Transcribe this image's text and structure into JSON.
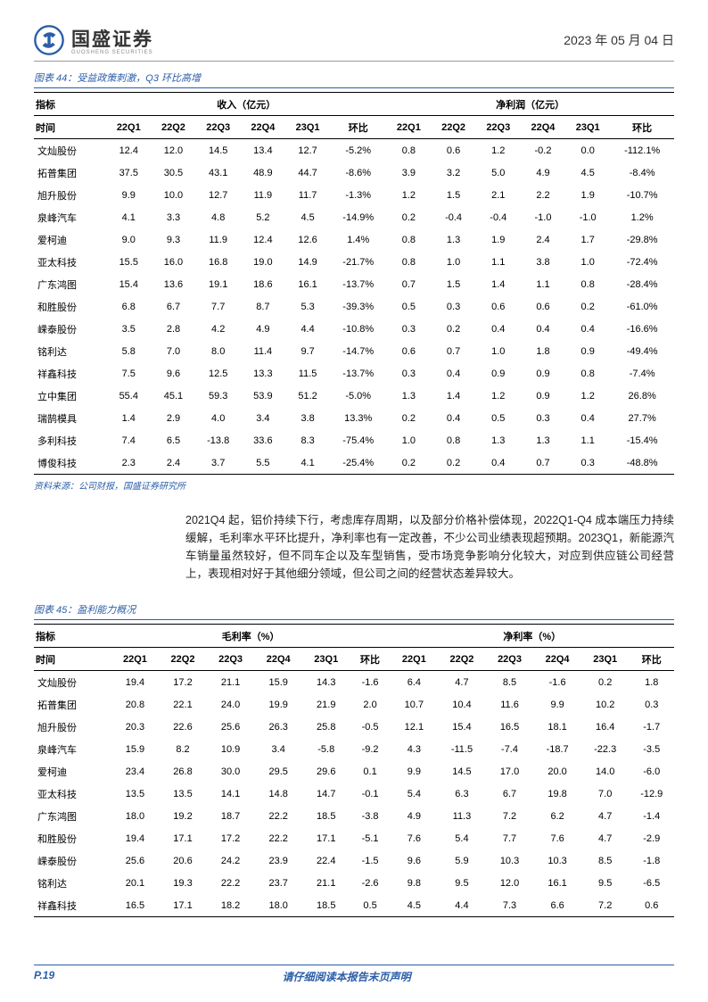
{
  "header": {
    "brand_cn": "国盛证券",
    "brand_en": "GUOSHENG SECURITIES",
    "date": "2023 年 05 月 04 日",
    "logo_color": "#2b5ea8"
  },
  "table44": {
    "title": "图表 44：受益政策刺激，Q3 环比高增",
    "group_headers": [
      "指标",
      "收入（亿元）",
      "净利润（亿元）"
    ],
    "sub_headers": [
      "时间",
      "22Q1",
      "22Q2",
      "22Q3",
      "22Q4",
      "23Q1",
      "环比",
      "22Q1",
      "22Q2",
      "22Q3",
      "22Q4",
      "23Q1",
      "环比"
    ],
    "rows": [
      [
        "文灿股份",
        "12.4",
        "12.0",
        "14.5",
        "13.4",
        "12.7",
        "-5.2%",
        "0.8",
        "0.6",
        "1.2",
        "-0.2",
        "0.0",
        "-112.1%"
      ],
      [
        "拓普集团",
        "37.5",
        "30.5",
        "43.1",
        "48.9",
        "44.7",
        "-8.6%",
        "3.9",
        "3.2",
        "5.0",
        "4.9",
        "4.5",
        "-8.4%"
      ],
      [
        "旭升股份",
        "9.9",
        "10.0",
        "12.7",
        "11.9",
        "11.7",
        "-1.3%",
        "1.2",
        "1.5",
        "2.1",
        "2.2",
        "1.9",
        "-10.7%"
      ],
      [
        "泉峰汽车",
        "4.1",
        "3.3",
        "4.8",
        "5.2",
        "4.5",
        "-14.9%",
        "0.2",
        "-0.4",
        "-0.4",
        "-1.0",
        "-1.0",
        "1.2%"
      ],
      [
        "爱柯迪",
        "9.0",
        "9.3",
        "11.9",
        "12.4",
        "12.6",
        "1.4%",
        "0.8",
        "1.3",
        "1.9",
        "2.4",
        "1.7",
        "-29.8%"
      ],
      [
        "亚太科技",
        "15.5",
        "16.0",
        "16.8",
        "19.0",
        "14.9",
        "-21.7%",
        "0.8",
        "1.0",
        "1.1",
        "3.8",
        "1.0",
        "-72.4%"
      ],
      [
        "广东鸿图",
        "15.4",
        "13.6",
        "19.1",
        "18.6",
        "16.1",
        "-13.7%",
        "0.7",
        "1.5",
        "1.4",
        "1.1",
        "0.8",
        "-28.4%"
      ],
      [
        "和胜股份",
        "6.8",
        "6.7",
        "7.7",
        "8.7",
        "5.3",
        "-39.3%",
        "0.5",
        "0.3",
        "0.6",
        "0.6",
        "0.2",
        "-61.0%"
      ],
      [
        "嵘泰股份",
        "3.5",
        "2.8",
        "4.2",
        "4.9",
        "4.4",
        "-10.8%",
        "0.3",
        "0.2",
        "0.4",
        "0.4",
        "0.4",
        "-16.6%"
      ],
      [
        "铭利达",
        "5.8",
        "7.0",
        "8.0",
        "11.4",
        "9.7",
        "-14.7%",
        "0.6",
        "0.7",
        "1.0",
        "1.8",
        "0.9",
        "-49.4%"
      ],
      [
        "祥鑫科技",
        "7.5",
        "9.6",
        "12.5",
        "13.3",
        "11.5",
        "-13.7%",
        "0.3",
        "0.4",
        "0.9",
        "0.9",
        "0.8",
        "-7.4%"
      ],
      [
        "立中集团",
        "55.4",
        "45.1",
        "59.3",
        "53.9",
        "51.2",
        "-5.0%",
        "1.3",
        "1.4",
        "1.2",
        "0.9",
        "1.2",
        "26.8%"
      ],
      [
        "瑞鹄模具",
        "1.4",
        "2.9",
        "4.0",
        "3.4",
        "3.8",
        "13.3%",
        "0.2",
        "0.4",
        "0.5",
        "0.3",
        "0.4",
        "27.7%"
      ],
      [
        "多利科技",
        "7.4",
        "6.5",
        "-13.8",
        "33.6",
        "8.3",
        "-75.4%",
        "1.0",
        "0.8",
        "1.3",
        "1.3",
        "1.1",
        "-15.4%"
      ],
      [
        "博俊科技",
        "2.3",
        "2.4",
        "3.7",
        "5.5",
        "4.1",
        "-25.4%",
        "0.2",
        "0.2",
        "0.4",
        "0.7",
        "0.3",
        "-48.8%"
      ]
    ],
    "source": "资料来源：公司财报，国盛证券研究所"
  },
  "paragraph_text": "2021Q4 起，铝价持续下行，考虑库存周期，以及部分价格补偿体现，2022Q1-Q4 成本端压力持续缓解，毛利率水平环比提升，净利率也有一定改善，不少公司业绩表现超预期。2023Q1，新能源汽车销量虽然较好，但不同车企以及车型销售，受市场竞争影响分化较大，对应到供应链公司经营上，表现相对好于其他细分领域，但公司之间的经营状态差异较大。",
  "table45": {
    "title": "图表 45：盈利能力概况",
    "group_headers": [
      "指标",
      "毛利率（%）",
      "净利率（%）"
    ],
    "sub_headers": [
      "时间",
      "22Q1",
      "22Q2",
      "22Q3",
      "22Q4",
      "23Q1",
      "环比",
      "22Q1",
      "22Q2",
      "22Q3",
      "22Q4",
      "23Q1",
      "环比"
    ],
    "rows": [
      [
        "文灿股份",
        "19.4",
        "17.2",
        "21.1",
        "15.9",
        "14.3",
        "-1.6",
        "6.4",
        "4.7",
        "8.5",
        "-1.6",
        "0.2",
        "1.8"
      ],
      [
        "拓普集团",
        "20.8",
        "22.1",
        "24.0",
        "19.9",
        "21.9",
        "2.0",
        "10.7",
        "10.4",
        "11.6",
        "9.9",
        "10.2",
        "0.3"
      ],
      [
        "旭升股份",
        "20.3",
        "22.6",
        "25.6",
        "26.3",
        "25.8",
        "-0.5",
        "12.1",
        "15.4",
        "16.5",
        "18.1",
        "16.4",
        "-1.7"
      ],
      [
        "泉峰汽车",
        "15.9",
        "8.2",
        "10.9",
        "3.4",
        "-5.8",
        "-9.2",
        "4.3",
        "-11.5",
        "-7.4",
        "-18.7",
        "-22.3",
        "-3.5"
      ],
      [
        "爱柯迪",
        "23.4",
        "26.8",
        "30.0",
        "29.5",
        "29.6",
        "0.1",
        "9.9",
        "14.5",
        "17.0",
        "20.0",
        "14.0",
        "-6.0"
      ],
      [
        "亚太科技",
        "13.5",
        "13.5",
        "14.1",
        "14.8",
        "14.7",
        "-0.1",
        "5.4",
        "6.3",
        "6.7",
        "19.8",
        "7.0",
        "-12.9"
      ],
      [
        "广东鸿图",
        "18.0",
        "19.2",
        "18.7",
        "22.2",
        "18.5",
        "-3.8",
        "4.9",
        "11.3",
        "7.2",
        "6.2",
        "4.7",
        "-1.4"
      ],
      [
        "和胜股份",
        "19.4",
        "17.1",
        "17.2",
        "22.2",
        "17.1",
        "-5.1",
        "7.6",
        "5.4",
        "7.7",
        "7.6",
        "4.7",
        "-2.9"
      ],
      [
        "嵘泰股份",
        "25.6",
        "20.6",
        "24.2",
        "23.9",
        "22.4",
        "-1.5",
        "9.6",
        "5.9",
        "10.3",
        "10.3",
        "8.5",
        "-1.8"
      ],
      [
        "铭利达",
        "20.1",
        "19.3",
        "22.2",
        "23.7",
        "21.1",
        "-2.6",
        "9.8",
        "9.5",
        "12.0",
        "16.1",
        "9.5",
        "-6.5"
      ],
      [
        "祥鑫科技",
        "16.5",
        "17.1",
        "18.2",
        "18.0",
        "18.5",
        "0.5",
        "4.5",
        "4.4",
        "7.3",
        "6.6",
        "7.2",
        "0.6"
      ]
    ]
  },
  "footer": {
    "page": "P.19",
    "disclaimer": "请仔细阅读本报告末页声明"
  },
  "colors": {
    "accent": "#2b5ea8",
    "text": "#000000",
    "border": "#000000"
  }
}
